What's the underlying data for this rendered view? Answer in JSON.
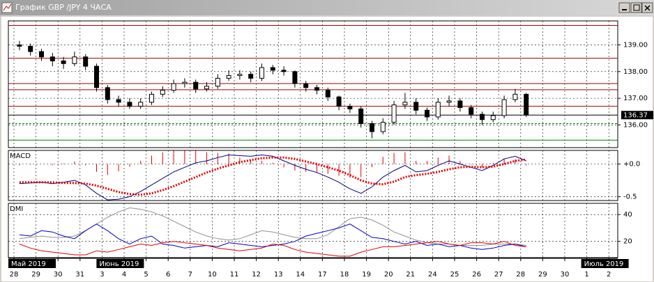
{
  "window_title": "График GBP /JPY  4 ЧАСА",
  "chart_data": [
    {
      "type": "candlestick",
      "open": [
        139.0,
        138.95,
        138.75,
        138.55,
        138.4,
        138.3,
        138.55,
        138.2,
        137.4,
        136.95,
        136.85,
        136.7,
        136.85,
        137.15,
        137.3,
        137.55,
        137.6,
        137.35,
        137.45,
        137.75,
        137.85,
        137.9,
        137.75,
        138.15,
        138.05,
        138.0,
        137.55,
        137.4,
        137.3,
        137.05,
        136.7,
        136.6,
        136.05,
        135.75,
        136.1,
        136.75,
        136.85,
        136.55,
        136.3,
        136.85,
        136.9,
        136.65,
        136.4,
        136.2,
        136.35,
        136.95,
        137.15
      ],
      "high": [
        139.15,
        139.05,
        138.85,
        138.7,
        138.55,
        138.75,
        138.65,
        138.3,
        137.5,
        137.1,
        137.0,
        137.0,
        137.25,
        137.45,
        137.7,
        137.75,
        137.7,
        137.6,
        137.9,
        138.05,
        138.05,
        138.0,
        138.3,
        138.25,
        138.2,
        138.05,
        137.65,
        137.5,
        137.4,
        137.1,
        136.8,
        136.7,
        136.15,
        136.25,
        136.9,
        137.2,
        137.0,
        136.65,
        137.0,
        137.1,
        137.0,
        136.75,
        136.5,
        136.5,
        137.1,
        137.35,
        137.2
      ],
      "low": [
        138.8,
        138.6,
        138.4,
        138.2,
        138.1,
        138.2,
        138.05,
        137.25,
        136.8,
        136.7,
        136.6,
        136.6,
        136.75,
        137.05,
        137.2,
        137.4,
        137.2,
        137.25,
        137.35,
        137.65,
        137.7,
        137.6,
        137.65,
        137.9,
        137.85,
        137.4,
        137.25,
        137.15,
        136.9,
        136.55,
        136.45,
        135.9,
        135.5,
        135.65,
        136.0,
        136.6,
        136.4,
        136.15,
        136.2,
        136.7,
        136.5,
        136.25,
        136.0,
        136.1,
        136.25,
        136.85,
        136.3
      ],
      "close": [
        138.95,
        138.75,
        138.55,
        138.4,
        138.3,
        138.55,
        138.2,
        137.4,
        136.95,
        136.85,
        136.7,
        136.85,
        137.15,
        137.3,
        137.55,
        137.6,
        137.35,
        137.45,
        137.75,
        137.85,
        137.9,
        137.75,
        138.15,
        138.05,
        138.0,
        137.55,
        137.4,
        137.3,
        137.05,
        136.7,
        136.6,
        136.05,
        135.75,
        136.1,
        136.75,
        136.85,
        136.55,
        136.3,
        136.85,
        136.9,
        136.65,
        136.4,
        136.2,
        136.35,
        136.95,
        137.15,
        136.37
      ],
      "ylim": [
        135.15,
        139.9
      ],
      "yticks": [
        {
          "value": 136,
          "label": "136.00"
        },
        {
          "value": 137,
          "label": "137.00"
        },
        {
          "value": 138,
          "label": "138.00"
        },
        {
          "value": 139,
          "label": "139.00"
        }
      ],
      "levels": [
        {
          "value": 139.73,
          "color": "#a00000",
          "style": "solid"
        },
        {
          "value": 138.5,
          "color": "#a00000",
          "style": "solid"
        },
        {
          "value": 137.55,
          "color": "#a00000",
          "style": "solid"
        },
        {
          "value": 137.32,
          "color": "#a00000",
          "style": "solid"
        },
        {
          "value": 136.7,
          "color": "#a00000",
          "style": "solid"
        },
        {
          "value": 136.05,
          "color": "#008000",
          "style": "dashed"
        },
        {
          "value": 135.43,
          "color": "#008000",
          "style": "solid"
        }
      ],
      "grid": true
    },
    {
      "type": "line",
      "title": "MACD",
      "ylim": [
        -0.56,
        0.21
      ],
      "yticks": [
        {
          "value": 0,
          "label": "+0.0"
        },
        {
          "value": -0.5,
          "label": "-0.5"
        }
      ],
      "series": [
        {
          "style": "histogram",
          "color": "#e00000",
          "values": [
            -0.02,
            -0.01,
            0.0,
            -0.02,
            0.01,
            0.04,
            -0.02,
            -0.12,
            -0.17,
            -0.11,
            -0.04,
            0.05,
            0.13,
            0.18,
            0.22,
            0.22,
            0.22,
            0.18,
            0.17,
            0.16,
            0.1,
            0.06,
            0.05,
            0.02,
            -0.05,
            -0.1,
            -0.12,
            -0.13,
            -0.15,
            -0.18,
            -0.21,
            -0.2,
            -0.05,
            0.11,
            0.17,
            0.18,
            0.05,
            0.05,
            0.1,
            0.13,
            0.05,
            -0.01,
            -0.05,
            0.02,
            0.08,
            0.07,
            -0.02
          ]
        },
        {
          "style": "line",
          "color": "#000080",
          "values": [
            -0.3,
            -0.29,
            -0.28,
            -0.3,
            -0.28,
            -0.25,
            -0.32,
            -0.45,
            -0.55,
            -0.54,
            -0.5,
            -0.42,
            -0.32,
            -0.22,
            -0.12,
            -0.05,
            0.02,
            0.05,
            0.1,
            0.14,
            0.13,
            0.12,
            0.14,
            0.12,
            0.05,
            -0.02,
            -0.08,
            -0.13,
            -0.2,
            -0.28,
            -0.38,
            -0.45,
            -0.35,
            -0.2,
            -0.1,
            -0.02,
            -0.12,
            -0.1,
            -0.02,
            0.05,
            0.0,
            -0.05,
            -0.1,
            -0.02,
            0.08,
            0.12,
            0.05
          ]
        },
        {
          "style": "dotted",
          "color": "#e00000",
          "values": [
            -0.28,
            -0.28,
            -0.28,
            -0.28,
            -0.29,
            -0.29,
            -0.3,
            -0.33,
            -0.38,
            -0.43,
            -0.46,
            -0.47,
            -0.45,
            -0.4,
            -0.34,
            -0.27,
            -0.2,
            -0.13,
            -0.07,
            -0.02,
            0.03,
            0.06,
            0.09,
            0.1,
            0.1,
            0.08,
            0.04,
            0.0,
            -0.05,
            -0.1,
            -0.17,
            -0.25,
            -0.3,
            -0.31,
            -0.27,
            -0.2,
            -0.17,
            -0.15,
            -0.12,
            -0.08,
            -0.05,
            -0.04,
            -0.05,
            -0.04,
            0.0,
            0.05,
            0.07
          ]
        }
      ],
      "grid": true
    },
    {
      "type": "line",
      "title": "DMI",
      "ylim": [
        7.9,
        48.4
      ],
      "yticks": [
        20,
        40
      ],
      "series": [
        {
          "style": "line",
          "color": "#909090",
          "values": [
            22,
            23,
            24,
            23,
            23,
            24,
            28,
            33,
            38,
            42,
            45,
            44,
            42,
            39,
            35,
            31,
            27,
            24,
            22,
            21,
            22,
            25,
            28,
            27,
            25,
            23,
            22,
            22,
            25,
            31,
            37,
            38,
            36,
            32,
            27,
            24,
            21,
            19,
            18,
            18,
            17,
            17,
            17,
            18,
            18,
            18,
            17
          ]
        },
        {
          "style": "line",
          "color": "#0000c0",
          "values": [
            25,
            24,
            28,
            27,
            24,
            22,
            28,
            33,
            28,
            22,
            18,
            22,
            24,
            18,
            17,
            15,
            16,
            17,
            16,
            19,
            18,
            17,
            16,
            17,
            18,
            20,
            24,
            26,
            28,
            30,
            33,
            28,
            23,
            22,
            20,
            18,
            20,
            17,
            18,
            16,
            17,
            15,
            14,
            15,
            17,
            18,
            16
          ]
        },
        {
          "style": "line",
          "color": "#e00000",
          "values": [
            18,
            15,
            13,
            12,
            11,
            10,
            10,
            13,
            12,
            14,
            16,
            18,
            17,
            19,
            20,
            19,
            18,
            17,
            15,
            14,
            13,
            14,
            15,
            18,
            17,
            14,
            12,
            11,
            10,
            9,
            9,
            12,
            14,
            16,
            16,
            17,
            18,
            19,
            20,
            18,
            17,
            19,
            19,
            18,
            20,
            17,
            16
          ]
        }
      ],
      "grid": true
    }
  ],
  "x_axis": {
    "labels": [
      "28",
      "29",
      "30",
      "31",
      "3",
      "4",
      "5",
      "6",
      "7",
      "10",
      "11",
      "12",
      "13",
      "14",
      "17",
      "18",
      "19",
      "20",
      "21",
      "24",
      "25",
      "26",
      "27",
      "28",
      "29",
      "30",
      "1",
      "2"
    ],
    "month_labels": [
      "Май 2019",
      null,
      null,
      null,
      "Июнь 2019",
      null,
      null,
      null,
      null,
      null,
      null,
      null,
      null,
      null,
      null,
      null,
      null,
      null,
      null,
      null,
      null,
      null,
      null,
      null,
      null,
      null,
      "Июль 2019",
      null
    ]
  }
}
